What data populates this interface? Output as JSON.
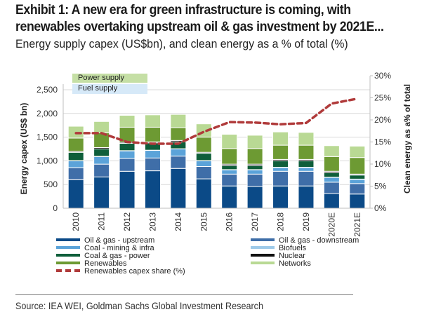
{
  "header": {
    "title_line1": "Exhibit 1: A new era for green infrastructure is coming, with",
    "title_line2": "renewables overtaking upstream oil & gas investment by 2021E...",
    "subtitle": "Energy supply capex (US$bn), and clean energy as a % of total (%)"
  },
  "footer": {
    "source": "Source: IEA WEI, Goldman Sachs Global Investment Research"
  },
  "chart_data": {
    "type": "bar",
    "stacked": true,
    "title": "Energy supply capex (US$bn), and clean energy as a % of total (%)",
    "xlabel": "",
    "ylabel": "Energy capex (US$ bn)",
    "y2label": "Clean energy as a% of total",
    "ylim": [
      0,
      2800
    ],
    "y2lim": [
      0,
      30
    ],
    "yticks": [
      "0",
      "500",
      "1,000",
      "1,500",
      "2,000",
      "2,500"
    ],
    "ytick_values": [
      0,
      500,
      1000,
      1500,
      2000,
      2500
    ],
    "y2ticks": [
      "0%",
      "5%",
      "10%",
      "15%",
      "20%",
      "25%",
      "30%"
    ],
    "y2tick_values": [
      0,
      5,
      10,
      15,
      20,
      25,
      30
    ],
    "grid": true,
    "legend_position": "bottom",
    "group_labels": [
      {
        "label": "Power supply",
        "color": "#c5dfa5"
      },
      {
        "label": "Fuel supply",
        "color": "#d6e9f8"
      }
    ],
    "categories": [
      "2010",
      "2011",
      "2012",
      "2013",
      "2014",
      "2015",
      "2016",
      "2017",
      "2018",
      "2019",
      "2020E",
      "2021E"
    ],
    "series": [
      {
        "name": "Oil & gas - upstream",
        "color": "#0b4a87",
        "values": [
          600,
          660,
          780,
          790,
          840,
          620,
          470,
          460,
          470,
          470,
          310,
          300
        ]
      },
      {
        "name": "Oil & gas - downstream",
        "color": "#3f6ea8",
        "values": [
          255,
          270,
          270,
          270,
          260,
          260,
          250,
          260,
          310,
          310,
          240,
          220
        ]
      },
      {
        "name": "Coal - mining & infra",
        "color": "#5ba3d9",
        "values": [
          145,
          160,
          160,
          160,
          150,
          120,
          90,
          90,
          80,
          80,
          100,
          90
        ]
      },
      {
        "name": "Biofuels",
        "color": "#9ecae9",
        "values": [
          5,
          5,
          5,
          5,
          5,
          5,
          5,
          5,
          5,
          5,
          5,
          5
        ]
      },
      {
        "name": "Coal & gas - power",
        "color": "#0e5e3a",
        "values": [
          175,
          155,
          155,
          155,
          145,
          155,
          85,
          85,
          135,
          135,
          95,
          85
        ]
      },
      {
        "name": "Nuclear",
        "color": "#111111",
        "values": [
          20,
          30,
          20,
          20,
          30,
          20,
          30,
          30,
          30,
          30,
          30,
          20
        ]
      },
      {
        "name": "Renewables",
        "color": "#6d9a33",
        "values": [
          280,
          310,
          320,
          310,
          270,
          320,
          330,
          330,
          300,
          300,
          310,
          350
        ]
      },
      {
        "name": "Networks",
        "color": "#b9d994",
        "values": [
          250,
          240,
          250,
          260,
          280,
          280,
          300,
          280,
          280,
          270,
          230,
          240
        ]
      }
    ],
    "line_series": {
      "name": "Renewables capex share (%)",
      "color": "#b03a3a",
      "axis": "right",
      "values": [
        17.0,
        17.0,
        15.0,
        14.6,
        14.6,
        17.3,
        19.5,
        19.4,
        19.0,
        19.3,
        23.7,
        24.8
      ]
    }
  }
}
